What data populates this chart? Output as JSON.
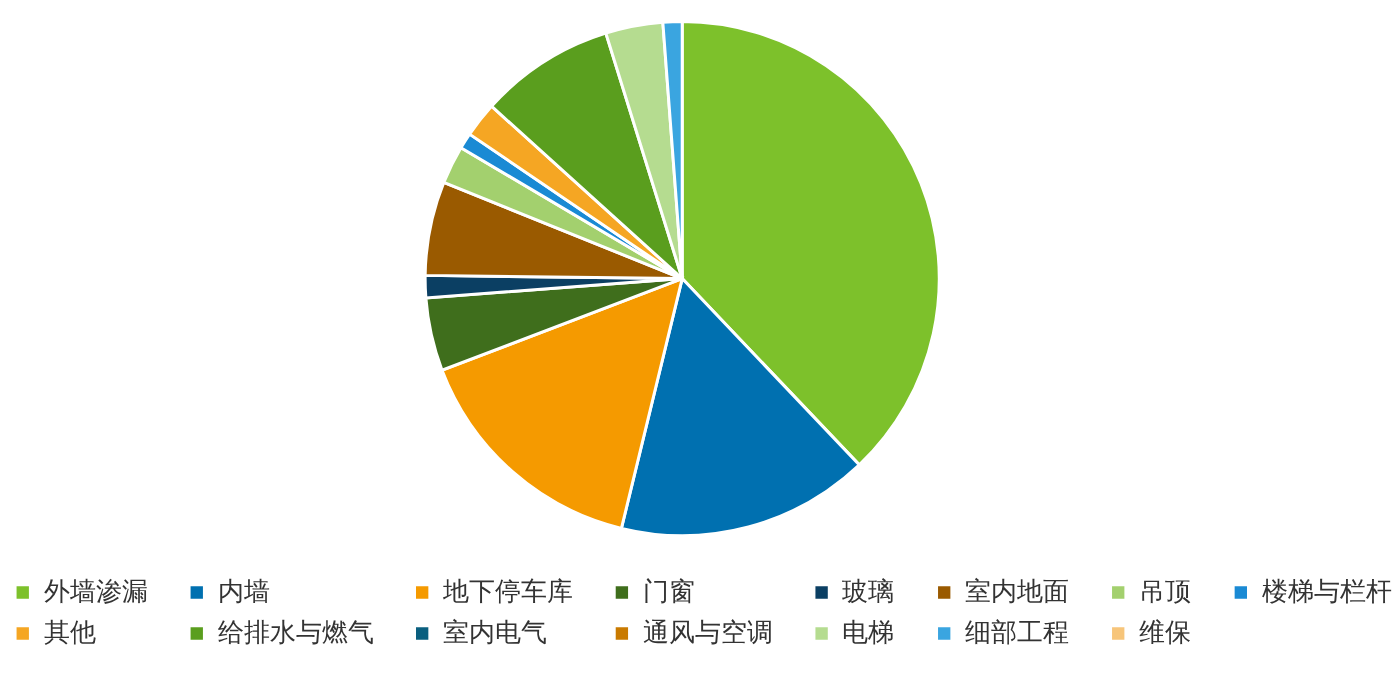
{
  "chart_data": {
    "type": "pie",
    "categories": [
      "外墙渗漏",
      "内墙",
      "地下停车库",
      "门窗",
      "玻璃",
      "室内地面",
      "吊顶",
      "楼梯与栏杆",
      "其他",
      "给排水与燃气",
      "室内电气",
      "通风与空调",
      "电梯",
      "细部工程",
      "维保"
    ],
    "values": [
      37.9,
      15.9,
      15.4,
      4.6,
      1.4,
      5.9,
      2.4,
      1.0,
      2.2,
      8.5,
      0,
      0,
      3.6,
      1.2,
      0
    ],
    "colors": [
      "#7dc12b",
      "#0070b0",
      "#f59a00",
      "#3f6e1c",
      "#0b3f63",
      "#9a5a00",
      "#a3d06e",
      "#1a8ad4",
      "#f5a623",
      "#5a9e1e",
      "#0a5f7f",
      "#c97a00",
      "#b5dc90",
      "#3aa5e0",
      "#f7c57a"
    ],
    "legend": "bottom"
  }
}
